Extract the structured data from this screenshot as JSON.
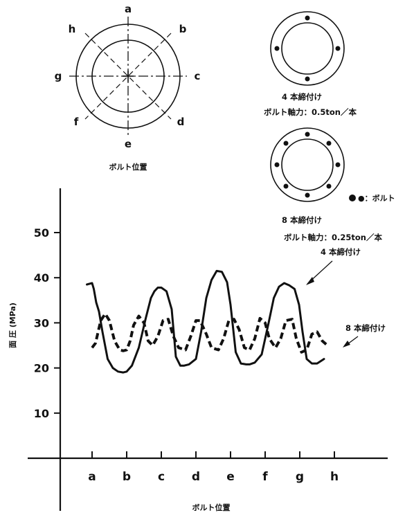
{
  "diagram_top_left": {
    "labels": [
      "a",
      "b",
      "c",
      "d",
      "e",
      "f",
      "g",
      "h"
    ],
    "caption": "ボルト位置"
  },
  "diagram_four_bolt": {
    "caption_line1": "4 本締付け",
    "caption_line2": "ボルト軸力：0.5ton／本"
  },
  "diagram_eight_bolt": {
    "bolt_legend": "●：ボルト",
    "caption_line1": "8 本締付け",
    "caption_line2": "ボルト軸力：0.25ton／本"
  },
  "chart_data": {
    "type": "line",
    "xlabel": "ボルト位置",
    "ylabel": "面 圧 (MPa)",
    "categories": [
      "a",
      "b",
      "c",
      "d",
      "e",
      "f",
      "g",
      "h"
    ],
    "yticks": [
      10,
      20,
      30,
      40,
      50
    ],
    "ylim": [
      0,
      60
    ],
    "xlim": [
      -0.75,
      7.0
    ],
    "grid": false,
    "series": [
      {
        "name": "4 本締付け",
        "style": "solid",
        "color": "#111111",
        "x": [
          -0.15,
          0.0,
          0.05,
          0.12,
          0.2,
          0.3,
          0.45,
          0.6,
          0.75,
          0.9,
          1.0,
          1.15,
          1.35,
          1.55,
          1.7,
          1.8,
          1.9,
          2.0,
          2.15,
          2.3,
          2.42,
          2.55,
          2.65,
          2.8,
          3.0,
          3.15,
          3.3,
          3.45,
          3.6,
          3.75,
          3.9,
          4.0,
          4.15,
          4.3,
          4.45,
          4.55,
          4.7,
          4.9,
          5.1,
          5.25,
          5.4,
          5.55,
          5.7,
          5.85,
          5.98,
          6.08,
          6.2,
          6.35,
          6.5,
          6.7
        ],
        "y": [
          38.5,
          38.8,
          37.5,
          34.5,
          32.5,
          28.0,
          22.0,
          20.0,
          19.2,
          19.0,
          19.2,
          20.5,
          24.5,
          31.0,
          35.5,
          37.0,
          37.8,
          37.8,
          37.0,
          33.0,
          22.5,
          20.5,
          20.5,
          20.8,
          22.0,
          28.0,
          35.5,
          39.5,
          41.5,
          41.3,
          39.0,
          34.0,
          23.5,
          21.0,
          20.8,
          20.8,
          21.2,
          23.0,
          30.0,
          35.5,
          38.0,
          38.8,
          38.3,
          37.5,
          34.0,
          28.0,
          22.0,
          21.0,
          21.0,
          22.0
        ]
      },
      {
        "name": "8 本締付け",
        "style": "dashed",
        "color": "#111111",
        "x": [
          0.0,
          0.1,
          0.25,
          0.38,
          0.5,
          0.65,
          0.8,
          0.9,
          1.0,
          1.1,
          1.2,
          1.35,
          1.5,
          1.62,
          1.75,
          1.9,
          2.05,
          2.2,
          2.35,
          2.5,
          2.7,
          2.85,
          3.0,
          3.12,
          3.3,
          3.45,
          3.65,
          3.8,
          3.95,
          4.1,
          4.25,
          4.4,
          4.55,
          4.7,
          4.85,
          5.0,
          5.12,
          5.3,
          5.45,
          5.6,
          5.78,
          5.9,
          6.05,
          6.2,
          6.35,
          6.5,
          6.65,
          6.8
        ],
        "y": [
          24.5,
          25.5,
          30.5,
          32.0,
          30.5,
          26.0,
          24.0,
          23.8,
          24.0,
          26.0,
          29.5,
          31.5,
          30.0,
          26.0,
          25.0,
          27.0,
          30.5,
          30.8,
          27.0,
          24.5,
          24.0,
          27.0,
          30.5,
          30.5,
          27.5,
          24.5,
          24.0,
          26.5,
          30.5,
          30.8,
          28.5,
          24.5,
          24.0,
          26.5,
          31.0,
          30.0,
          26.5,
          24.5,
          26.5,
          30.5,
          30.8,
          26.5,
          23.5,
          24.0,
          27.5,
          28.0,
          26.0,
          25.0
        ]
      }
    ],
    "annotations": [
      "4 本締付け",
      "8 本締付け"
    ]
  }
}
